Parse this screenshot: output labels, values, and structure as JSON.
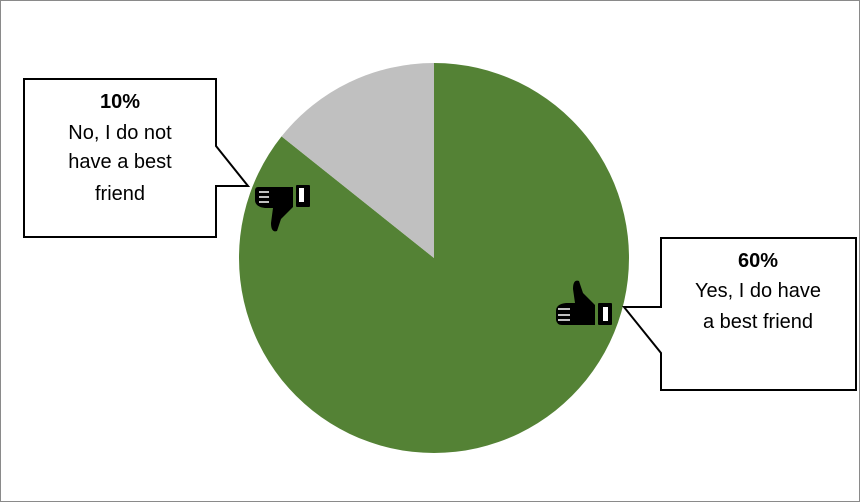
{
  "chart_data": {
    "type": "pie",
    "slices": [
      {
        "label": "Yes, I do have a best friend",
        "value": 60,
        "display": "60%",
        "color": "#548235"
      },
      {
        "label": "No, I do not have a best friend",
        "value": 10,
        "display": "10%",
        "color": "#c0c0c0"
      }
    ],
    "callouts": {
      "no": {
        "percent": "10%",
        "lines": [
          "No, I do not",
          "have a best",
          "friend"
        ]
      },
      "yes": {
        "percent": "60%",
        "lines": [
          "Yes, I do have",
          "a best friend"
        ]
      }
    },
    "icons": {
      "no": "thumbs-down-icon",
      "yes": "thumbs-up-icon"
    },
    "title": "",
    "legend": "none"
  }
}
